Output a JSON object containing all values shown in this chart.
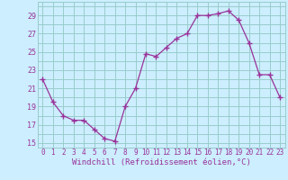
{
  "x": [
    0,
    1,
    2,
    3,
    4,
    5,
    6,
    7,
    8,
    9,
    10,
    11,
    12,
    13,
    14,
    15,
    16,
    17,
    18,
    19,
    20,
    21,
    22,
    23
  ],
  "y": [
    22.0,
    19.5,
    18.0,
    17.5,
    17.5,
    16.5,
    15.5,
    15.2,
    19.0,
    21.0,
    24.8,
    24.5,
    25.5,
    26.5,
    27.0,
    29.0,
    29.0,
    29.2,
    29.5,
    28.5,
    26.0,
    22.5,
    22.5,
    20.0
  ],
  "line_color": "#993399",
  "marker": "+",
  "marker_color": "#993399",
  "bg_color": "#cceeff",
  "grid_color": "#99cccc",
  "axis_color": "#993399",
  "tick_color": "#993399",
  "xlabel": "Windchill (Refroidissement éolien,°C)",
  "xlabel_fontsize": 6.5,
  "ylim": [
    14.5,
    30.5
  ],
  "yticks": [
    15,
    17,
    19,
    21,
    23,
    25,
    27,
    29
  ],
  "xlim": [
    -0.5,
    23.5
  ],
  "xticks": [
    0,
    1,
    2,
    3,
    4,
    5,
    6,
    7,
    8,
    9,
    10,
    11,
    12,
    13,
    14,
    15,
    16,
    17,
    18,
    19,
    20,
    21,
    22,
    23
  ],
  "font_family": "monospace",
  "tick_fontsize": 5.5,
  "ytick_fontsize": 6.0,
  "linewidth": 0.9,
  "markersize": 4.5
}
